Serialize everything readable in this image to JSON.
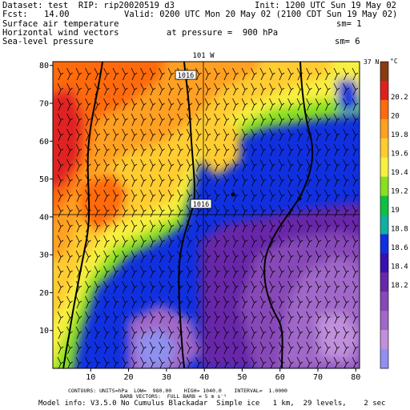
{
  "header": {
    "dataset_line": "Dataset: test  RIP: rip20020519 d3",
    "init_line": "Init: 1200 UTC Sun 19 May 02",
    "fcst_label": "Fcst:",
    "fcst_value": "14.00",
    "valid_line": "Valid: 0200 UTC Mon 20 May 02 (2100 CDT Sun 19 May 02)",
    "field1": "Surface air temperature",
    "field1_sm": "sm= 1",
    "field2": "Horizontal wind vectors",
    "pressure_line": "at pressure =  900 hPa",
    "field3": "Sea-level pressure",
    "field3_sm": "sm= 6"
  },
  "map": {
    "top_label": "101 W",
    "right_label": "37 N",
    "x_ticks": [
      10,
      20,
      30,
      40,
      50,
      60,
      70,
      80
    ],
    "y_ticks": [
      10,
      20,
      30,
      40,
      50,
      60,
      70,
      80
    ],
    "isobar_labels": [
      "1016",
      "1016"
    ],
    "colors": {
      "frame": "#000000",
      "isobar": "#000000",
      "barb": "#000000"
    }
  },
  "colorbar": {
    "unit": "°C",
    "labels": [
      "20.2",
      "20",
      "19.8",
      "19.6",
      "19.4",
      "19.2",
      "19",
      "18.8",
      "18.6",
      "18.4",
      "18.2"
    ],
    "colors": [
      "#8B3A10",
      "#E02020",
      "#FF6A10",
      "#FFA020",
      "#FFCC30",
      "#F8F040",
      "#88E020",
      "#10C040",
      "#10B0A0",
      "#1030E0",
      "#3A10B0",
      "#6828A8",
      "#8848B8",
      "#A068C8",
      "#C090DC",
      "#9090F0"
    ]
  },
  "footer": {
    "line1": "CONTOURS: UNITS=hPa  LOW=  980.00    HIGH= 1040.0    INTERVAL=  1.0000",
    "line2": "BARB VECTORS:  FULL BARB = 5 m s⁻¹",
    "line3": "Model info: V3.5.0 No Cumulus Blackadar  Simple ice   1 km,  29 levels,    2 sec"
  }
}
